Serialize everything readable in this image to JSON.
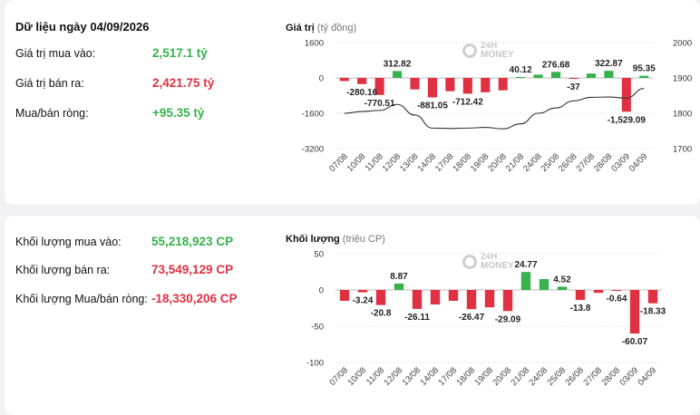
{
  "summary": {
    "title": "Dữ liệu ngày 04/09/2026",
    "buy_label": "Giá trị mua vào:",
    "buy_value": "2,517.1 tỷ",
    "sell_label": "Giá trị bán ra:",
    "sell_value": "2,421.75 tỷ",
    "net_label": "Mua/bán ròng:",
    "net_value": "+95.35 tỷ"
  },
  "volume_summary": {
    "buy_label": "Khối lượng mua vào:",
    "buy_value": "55,218,923 CP",
    "sell_label": "Khối lượng bán ra:",
    "sell_value": "73,549,129 CP",
    "net_label": "Khối lượng Mua/bán ròng:",
    "net_value": "-18,330,206 CP"
  },
  "logo": {
    "line1": "24H",
    "line2": "MONEY"
  },
  "colors": {
    "positive": "#37b24d",
    "negative": "#e03142",
    "index_line": "#333333"
  },
  "chart_data": [
    {
      "type": "bar",
      "title": "Giá trị",
      "unit": "(tỷ đồng)",
      "categories": [
        "07/08",
        "10/08",
        "11/08",
        "12/08",
        "13/08",
        "14/08",
        "17/08",
        "18/08",
        "19/08",
        "20/08",
        "21/08",
        "24/08",
        "25/08",
        "26/08",
        "27/08",
        "28/08",
        "03/09",
        "04/09"
      ],
      "series": [
        {
          "values": [
            -140,
            -280.16,
            -770.51,
            312.82,
            -520,
            -881.05,
            -600,
            -712.42,
            -650,
            -560,
            40.12,
            150,
            276.68,
            -37,
            200,
            322.87,
            -1529.09,
            95.35
          ]
        },
        {
          "type": "line",
          "axis": "right",
          "values": [
            1800,
            1805,
            1808,
            1825,
            1795,
            1758,
            1757,
            1758,
            1760,
            1756,
            1770,
            1800,
            1815,
            1835,
            1845,
            1846,
            1843,
            1870
          ]
        }
      ],
      "labels": [
        {
          "index": 1,
          "text": "-280.16"
        },
        {
          "index": 2,
          "text": "-770.51"
        },
        {
          "index": 3,
          "text": "312.82"
        },
        {
          "index": 5,
          "text": "-881.05"
        },
        {
          "index": 7,
          "text": "-712.42"
        },
        {
          "index": 10,
          "text": "40.12"
        },
        {
          "index": 12,
          "text": "276.68"
        },
        {
          "index": 13,
          "text": "-37"
        },
        {
          "index": 15,
          "text": "322.87"
        },
        {
          "index": 16,
          "text": "-1,529.09"
        },
        {
          "index": 17,
          "text": "95.35"
        }
      ],
      "ylim": [
        -3200,
        1600
      ],
      "yticks": [
        "1600",
        "0",
        "-1600",
        "-3200"
      ],
      "y2lim": [
        1700,
        2000
      ],
      "y2ticks": [
        "2000",
        "1900",
        "1800",
        "1700"
      ]
    },
    {
      "type": "bar",
      "title": "Khối lượng",
      "unit": "(triệu CP)",
      "categories": [
        "07/08",
        "10/08",
        "11/08",
        "12/08",
        "13/08",
        "14/08",
        "17/08",
        "18/08",
        "19/08",
        "20/08",
        "21/08",
        "24/08",
        "25/08",
        "26/08",
        "27/08",
        "28/08",
        "03/09",
        "04/09"
      ],
      "series": [
        {
          "values": [
            -15,
            -3.24,
            -20.8,
            8.87,
            -26.11,
            -20,
            -15,
            -26.47,
            -24,
            -29.09,
            24.77,
            15,
            4.52,
            -13.8,
            -4,
            -0.64,
            -60.07,
            -18.33
          ]
        }
      ],
      "labels": [
        {
          "index": 1,
          "text": "-3.24"
        },
        {
          "index": 2,
          "text": "-20.8"
        },
        {
          "index": 3,
          "text": "8.87"
        },
        {
          "index": 4,
          "text": "-26.11"
        },
        {
          "index": 7,
          "text": "-26.47"
        },
        {
          "index": 9,
          "text": "-29.09"
        },
        {
          "index": 10,
          "text": "24.77"
        },
        {
          "index": 12,
          "text": "4.52"
        },
        {
          "index": 13,
          "text": "-13.8"
        },
        {
          "index": 15,
          "text": "-0.64"
        },
        {
          "index": 16,
          "text": "-60.07"
        },
        {
          "index": 17,
          "text": "-18.33"
        }
      ],
      "ylim": [
        -100,
        50
      ],
      "yticks": [
        "50",
        "0",
        "-50",
        "-100"
      ]
    }
  ]
}
